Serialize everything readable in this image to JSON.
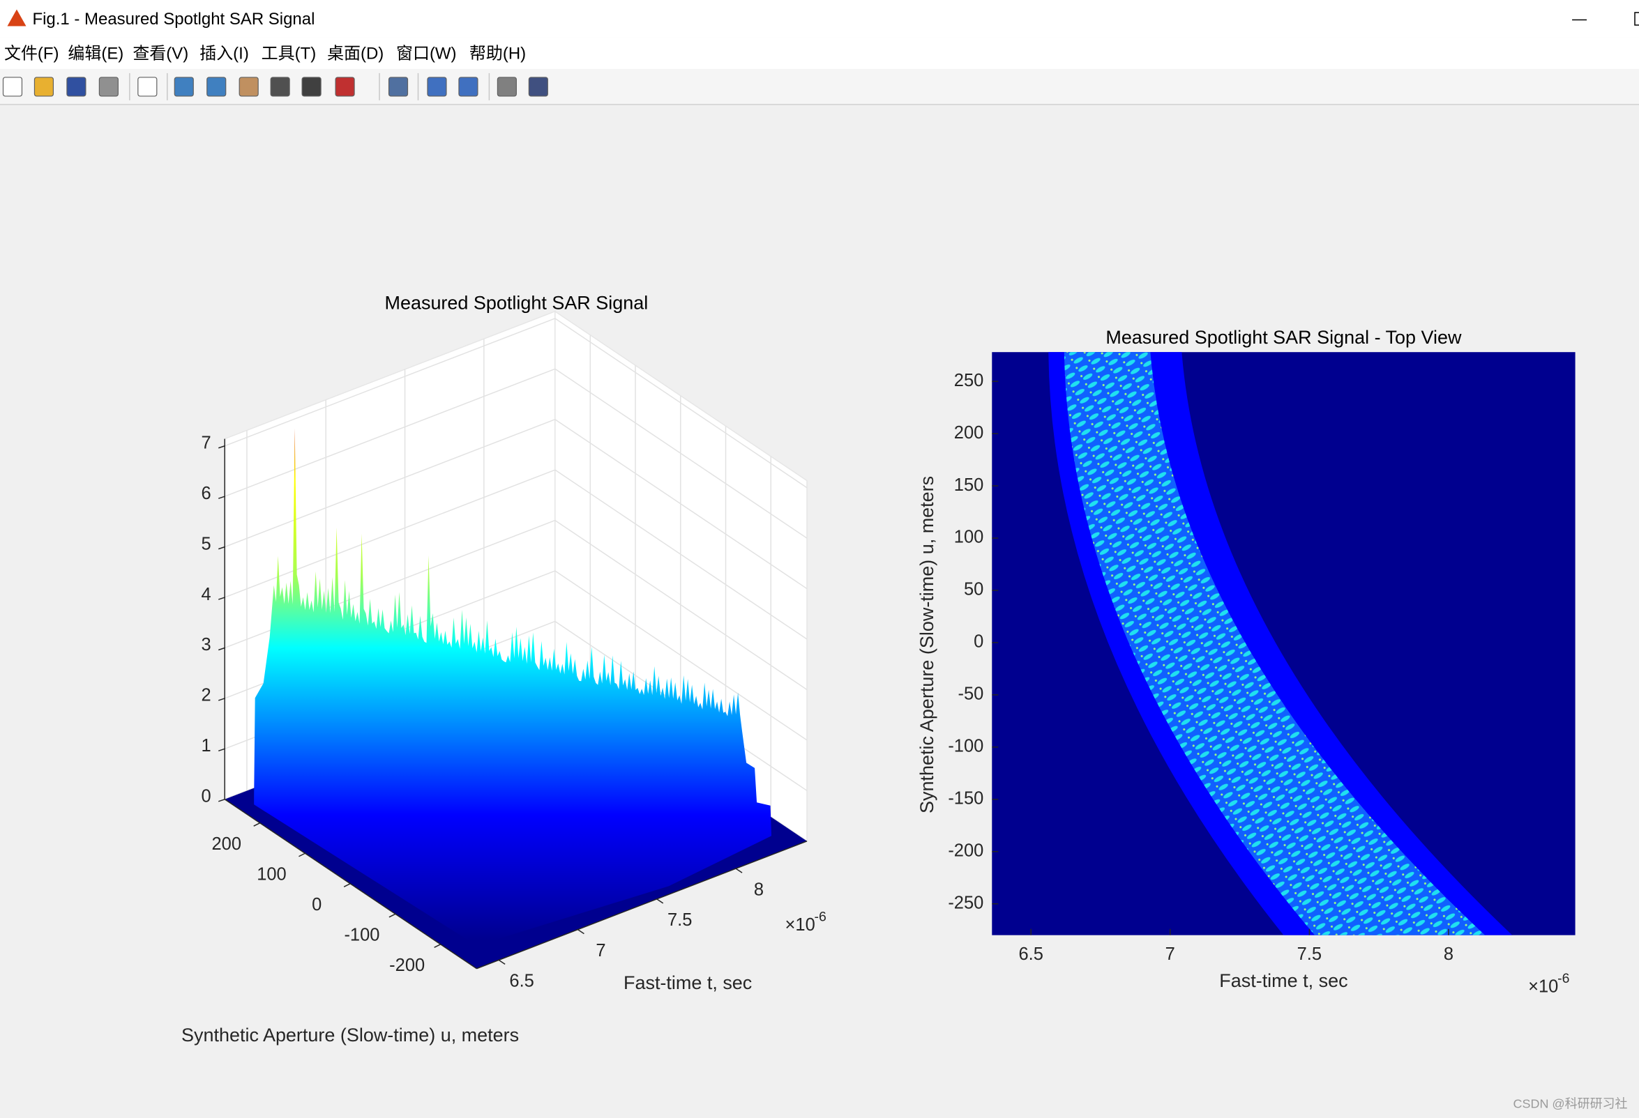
{
  "window": {
    "title": "Fig.1 - Measured Spotlght SAR Signal"
  },
  "menu": [
    "文件(F)",
    "编辑(E)",
    "查看(V)",
    "插入(I)",
    "工具(T)",
    "桌面(D)",
    "窗口(W)",
    "帮助(H)"
  ],
  "chart_data": [
    {
      "type": "surface",
      "title": "Measured Spotlight SAR Signal",
      "xlabel": "Fast-time t, sec",
      "ylabel": "Synthetic Aperture (Slow-time) u, meters",
      "xlim": [
        6.36,
        8.45
      ],
      "xticks": [
        6.5,
        7,
        7.5,
        8
      ],
      "ylim": [
        -280,
        278
      ],
      "yticks": [
        -200,
        -100,
        0,
        100,
        200
      ],
      "zlim": [
        0,
        7.14
      ],
      "zticks": [
        0,
        1,
        2,
        3,
        4,
        5,
        6,
        7
      ],
      "x_exponent": {
        "base": "×10",
        "power": "-6"
      },
      "grid": true
    },
    {
      "type": "heatmap",
      "title": "Measured Spotlight SAR Signal - Top View",
      "xlabel": "Fast-time t, sec",
      "ylabel": "Synthetic Aperture (Slow-time) u, meters",
      "xlim": [
        6.36,
        8.455
      ],
      "xticks": [
        6.5,
        7,
        7.5,
        8
      ],
      "ylim": [
        -280,
        278
      ],
      "yticks": [
        -250,
        -200,
        -150,
        -100,
        -50,
        0,
        50,
        100,
        150,
        200,
        250
      ],
      "x_exponent": {
        "base": "×10",
        "power": "-6"
      }
    }
  ],
  "watermark": "CSDN @科研研习社"
}
